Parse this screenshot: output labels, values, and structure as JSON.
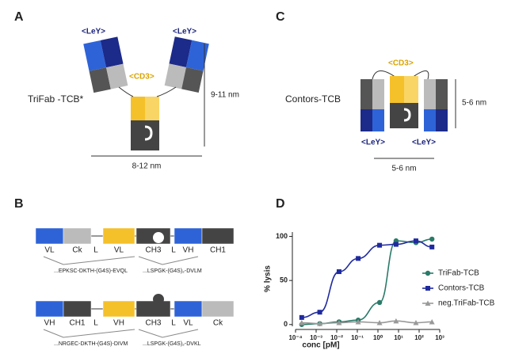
{
  "panel_a": {
    "label": "A",
    "target_left": "<LeY>",
    "target_right": "<LeY>",
    "cd3_tag": "<CD3>",
    "name": "TriFab -TCB*",
    "height": "9-11 nm",
    "width": "8-12 nm"
  },
  "panel_c": {
    "label": "C",
    "cd3_tag": "<CD3>",
    "name": "Contors-TCB",
    "height": "5-6 nm",
    "target_left": "<LeY>",
    "target_right": "<LeY>",
    "width": "5-6 nm"
  },
  "panel_b": {
    "label": "B",
    "rows": [
      {
        "domains": [
          "VL",
          "Ck",
          "L",
          "VL",
          "CH3",
          "L",
          "VH",
          "CH1"
        ],
        "linkers": [
          "...EPKSC-DKTH-(G4S)-EVQL",
          "...LSPGK-(G4S)₂-DVLM"
        ]
      },
      {
        "domains": [
          "VH",
          "CH1",
          "L",
          "VH",
          "CH3",
          "L",
          "VL",
          "Ck"
        ],
        "linkers": [
          "...NRGEC-DKTH-(G4S)-DIVM",
          "...LSPGK-(G4S)₂-DVKL"
        ]
      }
    ]
  },
  "chart_data": {
    "type": "scatter",
    "panel_label": "D",
    "x_label": "conc [pM]",
    "y_label": "% lysis",
    "log_x": true,
    "xlim": [
      0.0001,
      1000
    ],
    "xticks": [
      {
        "value": 0.0001,
        "label": "10⁻⁴"
      },
      {
        "value": 0.001,
        "label": "10⁻³"
      },
      {
        "value": 0.01,
        "label": "10⁻²"
      },
      {
        "value": 0.1,
        "label": "10⁻¹"
      },
      {
        "value": 1,
        "label": "10⁰"
      },
      {
        "value": 10,
        "label": "10¹"
      },
      {
        "value": 100,
        "label": "10²"
      },
      {
        "value": 1000,
        "label": "10³"
      }
    ],
    "ylim": [
      -2,
      105
    ],
    "yticks": [
      0,
      50,
      100
    ],
    "legend": "right",
    "x": [
      0.0002,
      0.0015,
      0.013,
      0.11,
      1.2,
      7.6,
      70,
      420
    ],
    "series": [
      {
        "name": "TriFab-TCB",
        "color": "#2a7a68",
        "marker": "circle",
        "values": [
          0,
          1,
          3,
          5,
          25,
          95,
          93,
          97
        ]
      },
      {
        "name": "Contors-TCB",
        "color": "#1f2a9e",
        "marker": "square",
        "values": [
          8,
          14,
          60,
          75,
          90,
          91,
          95,
          88
        ]
      },
      {
        "name": "neg.TriFab-TCB",
        "color": "#999999",
        "marker": "triangle",
        "values": [
          2,
          1,
          2,
          3,
          2,
          4,
          2,
          3
        ]
      }
    ]
  }
}
